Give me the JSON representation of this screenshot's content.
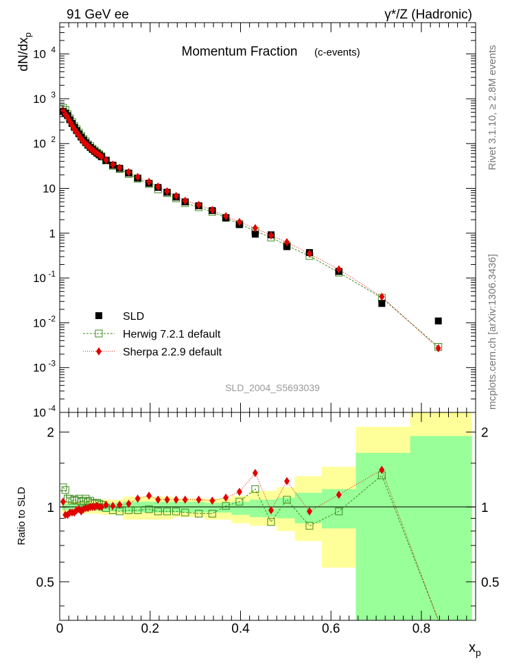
{
  "header": {
    "left": "91 GeV ee",
    "right": "γ*/Z (Hadronic)"
  },
  "chart_data": [
    {
      "type": "scatter",
      "title": "Momentum Fraction",
      "subtitle": "(c-events)",
      "ylabel": "dN/dx",
      "ylabel_sub": "p",
      "ylog": true,
      "ylim": [
        0.0001,
        50000
      ],
      "xlim": [
        0,
        0.92
      ],
      "y_ticks": [
        {
          "v": 0.0001,
          "m": "10",
          "e": "-4"
        },
        {
          "v": 0.001,
          "m": "10",
          "e": "-3"
        },
        {
          "v": 0.01,
          "m": "10",
          "e": "-2"
        },
        {
          "v": 0.1,
          "m": "10",
          "e": "-1"
        },
        {
          "v": 1,
          "m": "1",
          "e": ""
        },
        {
          "v": 10,
          "m": "10",
          "e": ""
        },
        {
          "v": 100,
          "m": "10",
          "e": "2"
        },
        {
          "v": 1000,
          "m": "10",
          "e": "3"
        },
        {
          "v": 10000,
          "m": "10",
          "e": "4"
        }
      ],
      "legend_position": "bottom-left",
      "watermark": "SLD_2004_S5693039",
      "x": [
        0.0075,
        0.0125,
        0.0175,
        0.0225,
        0.0275,
        0.0325,
        0.0375,
        0.0425,
        0.0475,
        0.0525,
        0.0575,
        0.0625,
        0.0675,
        0.0725,
        0.0775,
        0.0825,
        0.0875,
        0.0925,
        0.1025,
        0.1175,
        0.1325,
        0.1525,
        0.1725,
        0.1975,
        0.2175,
        0.2375,
        0.2575,
        0.2775,
        0.3075,
        0.3375,
        0.3675,
        0.3975,
        0.4325,
        0.4675,
        0.5025,
        0.5525,
        0.6175,
        0.7125,
        0.8375
      ],
      "series": [
        {
          "name": "SLD",
          "marker": "filled-square",
          "color": "#000000",
          "values": [
            520,
            480,
            420,
            340,
            280,
            230,
            195,
            165,
            140,
            120,
            105,
            92,
            82,
            74,
            67,
            61,
            56,
            51,
            42,
            33,
            28,
            22,
            17,
            13,
            10.5,
            8.2,
            6.4,
            5.0,
            4.1,
            3.2,
            2.2,
            1.55,
            0.95,
            0.92,
            0.5,
            0.37,
            0.14,
            0.027,
            0.011
          ]
        },
        {
          "name": "Herwig 7.2.1 default",
          "marker": "open-square",
          "color": "#3a8a1a",
          "values": [
            630,
            560,
            450,
            365,
            300,
            245,
            208,
            176,
            148,
            126,
            112,
            96,
            88,
            77,
            70,
            63,
            58,
            52,
            42,
            32,
            27,
            21,
            16.5,
            12.5,
            9.5,
            7.8,
            6.0,
            4.7,
            3.8,
            3.0,
            2.2,
            1.6,
            1.12,
            0.8,
            0.53,
            0.31,
            0.132,
            0.036,
            0.0029
          ]
        },
        {
          "name": "Sherpa 2.2.9 default",
          "marker": "filled-diamond",
          "color": "#e00000",
          "values": [
            545,
            450,
            385,
            310,
            255,
            210,
            178,
            152,
            128,
            110,
            98,
            87,
            79,
            72,
            66,
            61,
            56,
            51,
            43,
            34,
            29,
            23,
            18,
            14,
            11,
            8.6,
            6.8,
            5.3,
            4.3,
            3.3,
            2.4,
            1.78,
            1.3,
            0.89,
            0.63,
            0.35,
            0.156,
            0.038,
            0.0027
          ]
        }
      ]
    },
    {
      "type": "line",
      "ylabel": "Ratio to SLD",
      "xlabel": "x",
      "xlabel_sub": "p",
      "ylog": true,
      "ylim": [
        0.35,
        2.4
      ],
      "xlim": [
        0,
        0.92
      ],
      "x_ticks": [
        {
          "v": 0,
          "l": "0"
        },
        {
          "v": 0.2,
          "l": "0.2"
        },
        {
          "v": 0.4,
          "l": "0.4"
        },
        {
          "v": 0.6,
          "l": "0.6"
        },
        {
          "v": 0.8,
          "l": "0.8"
        }
      ],
      "y_ticks": [
        {
          "v": 0.5,
          "l": "0.5"
        },
        {
          "v": 1,
          "l": "1"
        },
        {
          "v": 2,
          "l": "2"
        }
      ],
      "reference_line": 1,
      "bands": [
        {
          "x0": 0.005,
          "x1": 0.045,
          "y1_lo": 0.97,
          "y1_hi": 1.03,
          "y2_lo": 0.95,
          "y2_hi": 1.05
        },
        {
          "x0": 0.045,
          "x1": 0.09,
          "y1_lo": 0.965,
          "y1_hi": 1.035,
          "y2_lo": 0.94,
          "y2_hi": 1.06
        },
        {
          "x0": 0.09,
          "x1": 0.14,
          "y1_lo": 0.96,
          "y1_hi": 1.04,
          "y2_lo": 0.93,
          "y2_hi": 1.07
        },
        {
          "x0": 0.14,
          "x1": 0.25,
          "y1_lo": 0.95,
          "y1_hi": 1.05,
          "y2_lo": 0.89,
          "y2_hi": 1.1
        },
        {
          "x0": 0.25,
          "x1": 0.32,
          "y1_lo": 0.95,
          "y1_hi": 1.05,
          "y2_lo": 0.91,
          "y2_hi": 1.08
        },
        {
          "x0": 0.32,
          "x1": 0.38,
          "y1_lo": 0.95,
          "y1_hi": 1.04,
          "y2_lo": 0.89,
          "y2_hi": 1.08
        },
        {
          "x0": 0.38,
          "x1": 0.42,
          "y1_lo": 0.93,
          "y1_hi": 1.05,
          "y2_lo": 0.86,
          "y2_hi": 1.11
        },
        {
          "x0": 0.42,
          "x1": 0.48,
          "y1_lo": 0.91,
          "y1_hi": 1.07,
          "y2_lo": 0.84,
          "y2_hi": 1.16
        },
        {
          "x0": 0.48,
          "x1": 0.52,
          "y1_lo": 0.9,
          "y1_hi": 1.09,
          "y2_lo": 0.8,
          "y2_hi": 1.2
        },
        {
          "x0": 0.52,
          "x1": 0.58,
          "y1_lo": 0.86,
          "y1_hi": 1.14,
          "y2_lo": 0.73,
          "y2_hi": 1.33
        },
        {
          "x0": 0.58,
          "x1": 0.655,
          "y1_lo": 0.82,
          "y1_hi": 1.18,
          "y2_lo": 0.57,
          "y2_hi": 1.45
        },
        {
          "x0": 0.655,
          "x1": 0.775,
          "y1_lo": 0.35,
          "y1_hi": 1.65,
          "y2_lo": 0.35,
          "y2_hi": 2.1
        },
        {
          "x0": 0.775,
          "x1": 0.912,
          "y1_lo": 0.35,
          "y1_hi": 1.93,
          "y2_lo": 0.35,
          "y2_hi": 2.4
        }
      ],
      "series": [
        {
          "name": "Herwig 7.2.1 default",
          "marker": "open-square",
          "color": "#3a8a1a",
          "values": [
            1.2,
            1.17,
            1.08,
            1.08,
            1.06,
            1.07,
            1.06,
            1.08,
            1.05,
            1.06,
            1.08,
            1.05,
            1.06,
            1.04,
            1.03,
            1.04,
            1.03,
            1.02,
            0.99,
            0.97,
            0.96,
            0.97,
            0.97,
            0.98,
            0.96,
            0.96,
            0.96,
            0.95,
            0.94,
            0.94,
            1.01,
            1.05,
            1.18,
            0.87,
            1.07,
            0.84,
            0.96,
            1.34,
            0.265
          ]
        },
        {
          "name": "Sherpa 2.2.9 default",
          "marker": "filled-diamond",
          "color": "#e00000",
          "values": [
            1.05,
            0.93,
            0.93,
            0.95,
            0.95,
            0.95,
            0.97,
            0.98,
            0.96,
            0.98,
            0.99,
            0.99,
            1.0,
            1.0,
            1.0,
            1.01,
            1.0,
            1.0,
            1.02,
            1.01,
            1.02,
            1.03,
            1.08,
            1.11,
            1.07,
            1.07,
            1.07,
            1.07,
            1.07,
            1.06,
            1.09,
            1.15,
            1.37,
            0.97,
            1.27,
            0.96,
            1.12,
            1.41,
            0.245
          ]
        }
      ]
    }
  ],
  "side_labels": {
    "top": "Rivet 3.1.10, ≥ 2.8M events",
    "bottom": "mcplots.cern.ch [arXiv:1306.3436]"
  }
}
